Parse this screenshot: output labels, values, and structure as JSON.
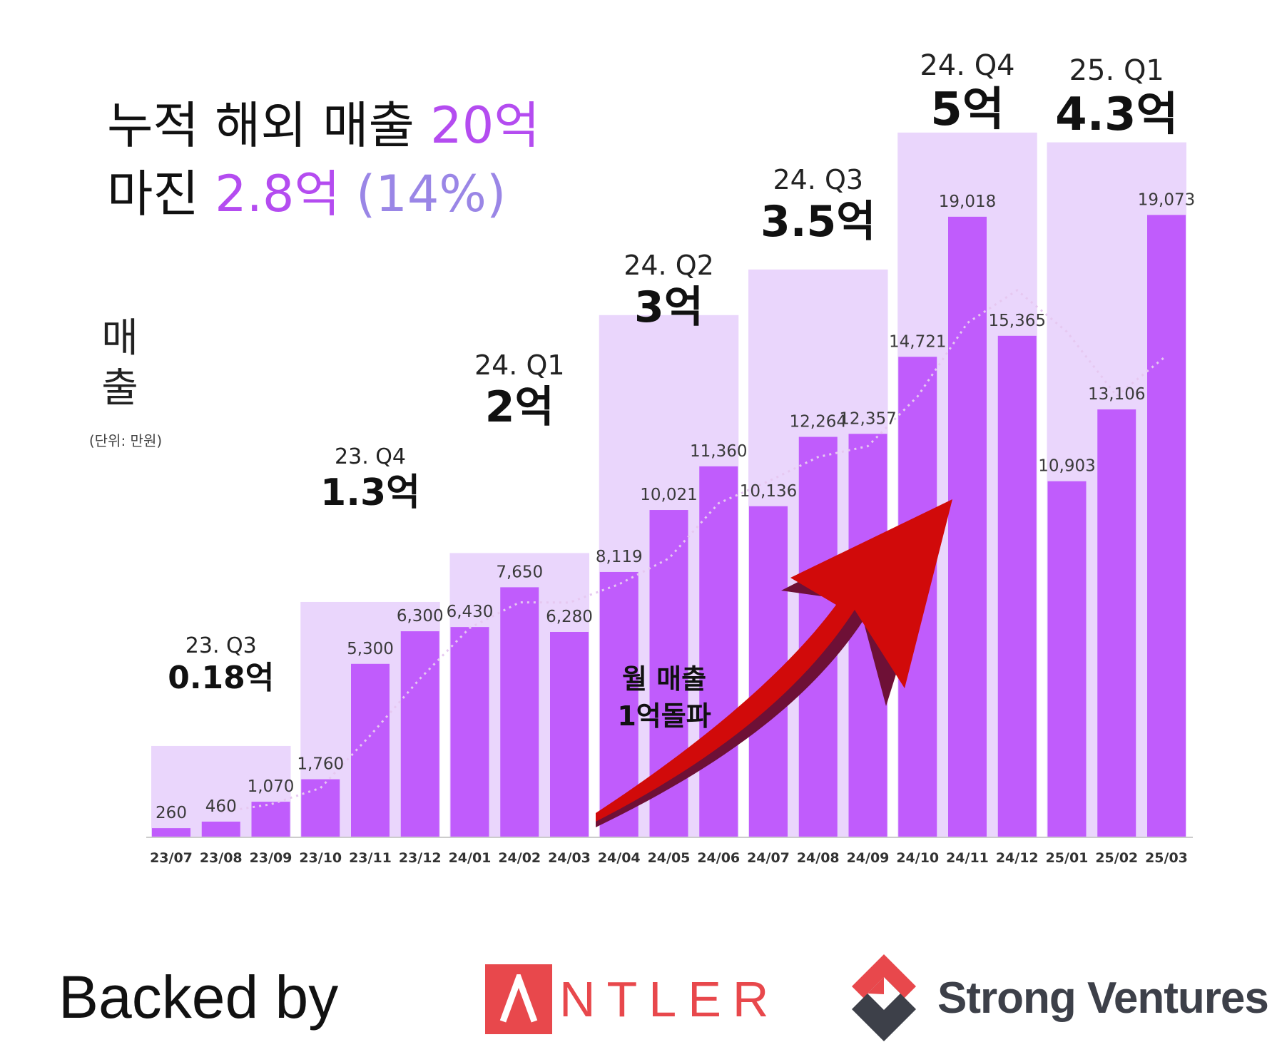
{
  "headline": {
    "line1_prefix": "누적 해외 매출 ",
    "line1_value": "20억",
    "line2_prefix": "마진 ",
    "line2_value": "2.8억",
    "line2_pct": " (14%)"
  },
  "ylabel": {
    "text": "매\n출",
    "unit": "(단위: 만원)"
  },
  "annotation": "월 매출\n1억돌파",
  "footer": {
    "backed_by": "Backed by",
    "antler": "NTLER",
    "strong_ventures": "Strong Ventures"
  },
  "colors": {
    "bar": "#c05cfc",
    "quarter_box": "#ead6fc",
    "accent": "#b44cf0",
    "arrow": "#d10a0a",
    "arrow_edge": "#6e1036"
  },
  "chart_data": {
    "type": "bar",
    "categories": [
      "23/07",
      "23/08",
      "23/09",
      "23/10",
      "23/11",
      "23/12",
      "24/01",
      "24/02",
      "24/03",
      "24/04",
      "24/05",
      "24/06",
      "24/07",
      "24/08",
      "24/09",
      "24/10",
      "24/11",
      "24/12",
      "25/01",
      "25/02",
      "25/03"
    ],
    "values": [
      260,
      460,
      1070,
      1760,
      5300,
      6300,
      6430,
      7650,
      6280,
      8119,
      10021,
      11360,
      10136,
      12264,
      12357,
      14721,
      19018,
      15365,
      10903,
      13106,
      19073
    ],
    "value_labels": [
      "260",
      "460",
      "1,070",
      "1,760",
      "5,300",
      "6,300",
      "6,430",
      "7,650",
      "6,280",
      "8,119",
      "10,021",
      "11,360",
      "10,136",
      "12,264",
      "12,357",
      "14,721",
      "19,018",
      "15,365",
      "10,903",
      "13,106",
      "19,073"
    ],
    "quarters": [
      {
        "label": "23. Q3",
        "total": "0.18억",
        "value": 0.18
      },
      {
        "label": "23. Q4",
        "total": "1.3억",
        "value": 1.3
      },
      {
        "label": "24. Q1",
        "total": "2억",
        "value": 2
      },
      {
        "label": "24. Q2",
        "total": "3억",
        "value": 3
      },
      {
        "label": "24. Q3",
        "total": "3.5억",
        "value": 3.5
      },
      {
        "label": "24. Q4",
        "total": "5억",
        "value": 5
      },
      {
        "label": "25. Q1",
        "total": "4.3억",
        "value": 4.3
      }
    ],
    "ylim": [
      0,
      24000
    ],
    "grid": false
  }
}
